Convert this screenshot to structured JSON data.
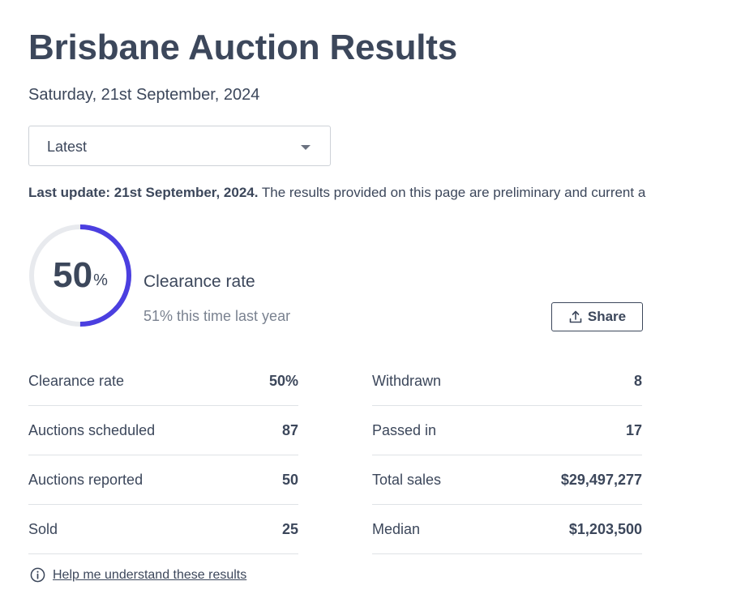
{
  "header": {
    "title": "Brisbane Auction Results",
    "date": "Saturday, 21st September, 2024"
  },
  "filter": {
    "selected": "Latest"
  },
  "update": {
    "bold": "Last update: 21st September, 2024.",
    "text": " The results provided on this page are preliminary and current a"
  },
  "summary": {
    "rate_value": "50",
    "rate_unit": "%",
    "rate_fraction": 0.5,
    "label": "Clearance rate",
    "last_year": "51% this time last year",
    "accent_color": "#4b3fe0",
    "track_color": "#e8eaee"
  },
  "share": {
    "label": "Share"
  },
  "stats": {
    "left": [
      {
        "label": "Clearance rate",
        "value": "50%"
      },
      {
        "label": "Auctions scheduled",
        "value": "87"
      },
      {
        "label": "Auctions reported",
        "value": "50"
      },
      {
        "label": "Sold",
        "value": "25"
      }
    ],
    "right": [
      {
        "label": "Withdrawn",
        "value": "8"
      },
      {
        "label": "Passed in",
        "value": "17"
      },
      {
        "label": "Total sales",
        "value": "$29,497,277"
      },
      {
        "label": "Median",
        "value": "$1,203,500"
      }
    ]
  },
  "help": {
    "icon": "info-icon",
    "link": "Help me understand these results"
  }
}
